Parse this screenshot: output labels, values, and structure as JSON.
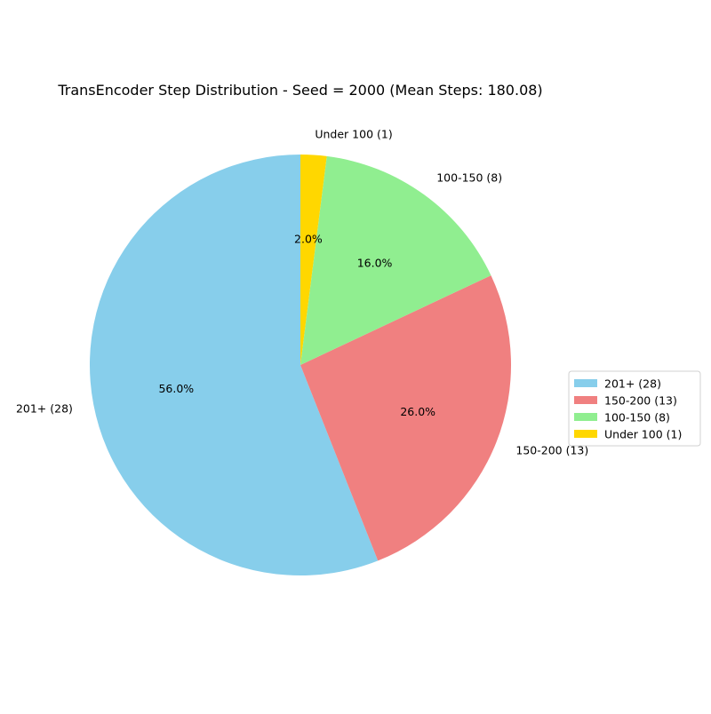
{
  "chart_data": {
    "type": "pie",
    "title": "TransEncoder Step Distribution - Seed = 2000 (Mean Steps: 180.08)",
    "start_angle_deg": 90,
    "direction": "counterclockwise",
    "legend_position": "right",
    "slices": [
      {
        "label": "201+ (28)",
        "value": 28,
        "percent": "56.0%",
        "color": "#87CEEB"
      },
      {
        "label": "150-200 (13)",
        "value": 13,
        "percent": "26.0%",
        "color": "#F08080"
      },
      {
        "label": "100-150 (8)",
        "value": 8,
        "percent": "16.0%",
        "color": "#90EE90"
      },
      {
        "label": "Under 100 (1)",
        "value": 1,
        "percent": "2.0%",
        "color": "#FFD700"
      }
    ]
  }
}
